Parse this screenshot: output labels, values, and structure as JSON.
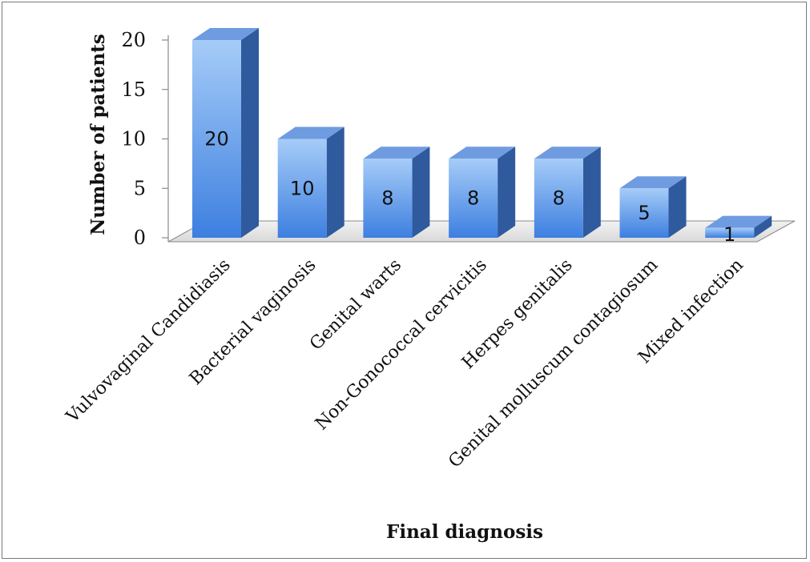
{
  "chart_data": {
    "type": "bar",
    "style": "3d-column",
    "title": "",
    "xlabel": "Final diagnosis",
    "ylabel": "Number of patients",
    "ylim": [
      0,
      20
    ],
    "yticks": [
      0,
      5,
      10,
      15,
      20
    ],
    "grid": false,
    "legend": "none",
    "categories": [
      "Vulvovaginal Candidiasis",
      "Bacterial vaginosis",
      "Genital warts",
      "Non-Gonococcal cervicitis",
      "Herpes genitalis",
      "Genital molluscum contagiosum",
      "Mixed infection"
    ],
    "values": [
      20,
      10,
      8,
      8,
      8,
      5,
      1
    ],
    "colors": {
      "bar_front_top": "#a6ccf8",
      "bar_front_bottom": "#3d7fe0",
      "bar_side": "#2f5a9e",
      "bar_top": "#6f9be0",
      "floor": "#e6e6e6"
    }
  }
}
